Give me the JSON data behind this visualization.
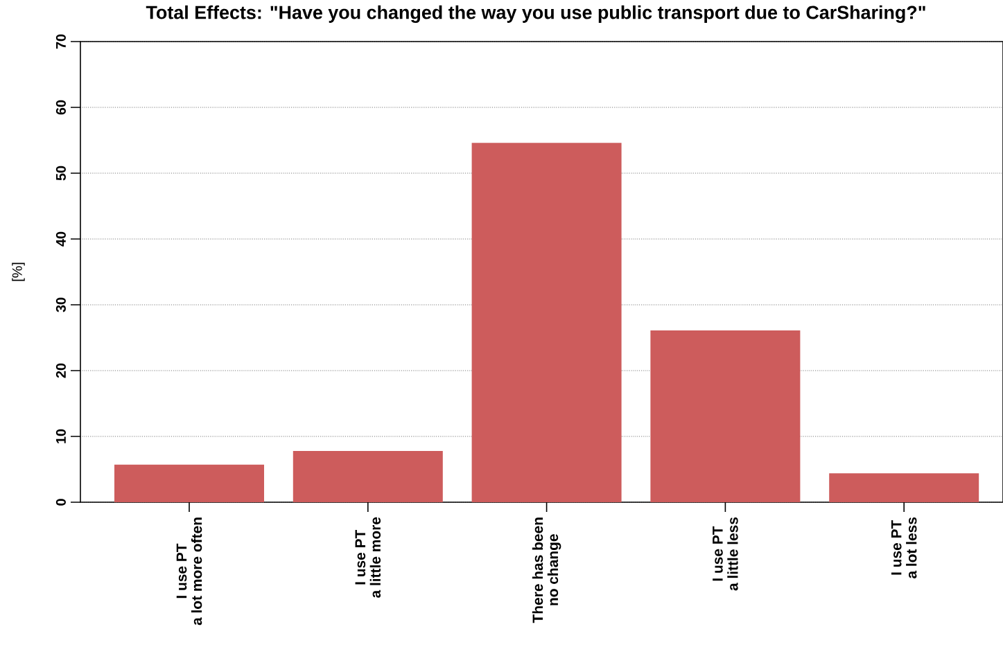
{
  "chart_data": {
    "type": "bar",
    "title": "Total Effects: \"Have you changed the way you use public transport due to CarSharing?\"",
    "ylabel": "[%]",
    "categories": [
      "I use PT\na lot more often",
      "I use PT\na little more",
      "There has been\nno change",
      "I use PT\na little less",
      "I use PT\na lot less"
    ],
    "values": [
      5.7,
      7.8,
      54.6,
      26.1,
      4.4
    ],
    "color": "#cd5c5c",
    "ylim": [
      0,
      70
    ],
    "yticks": [
      0,
      10,
      20,
      30,
      40,
      50,
      60,
      70
    ],
    "grid": "y"
  }
}
